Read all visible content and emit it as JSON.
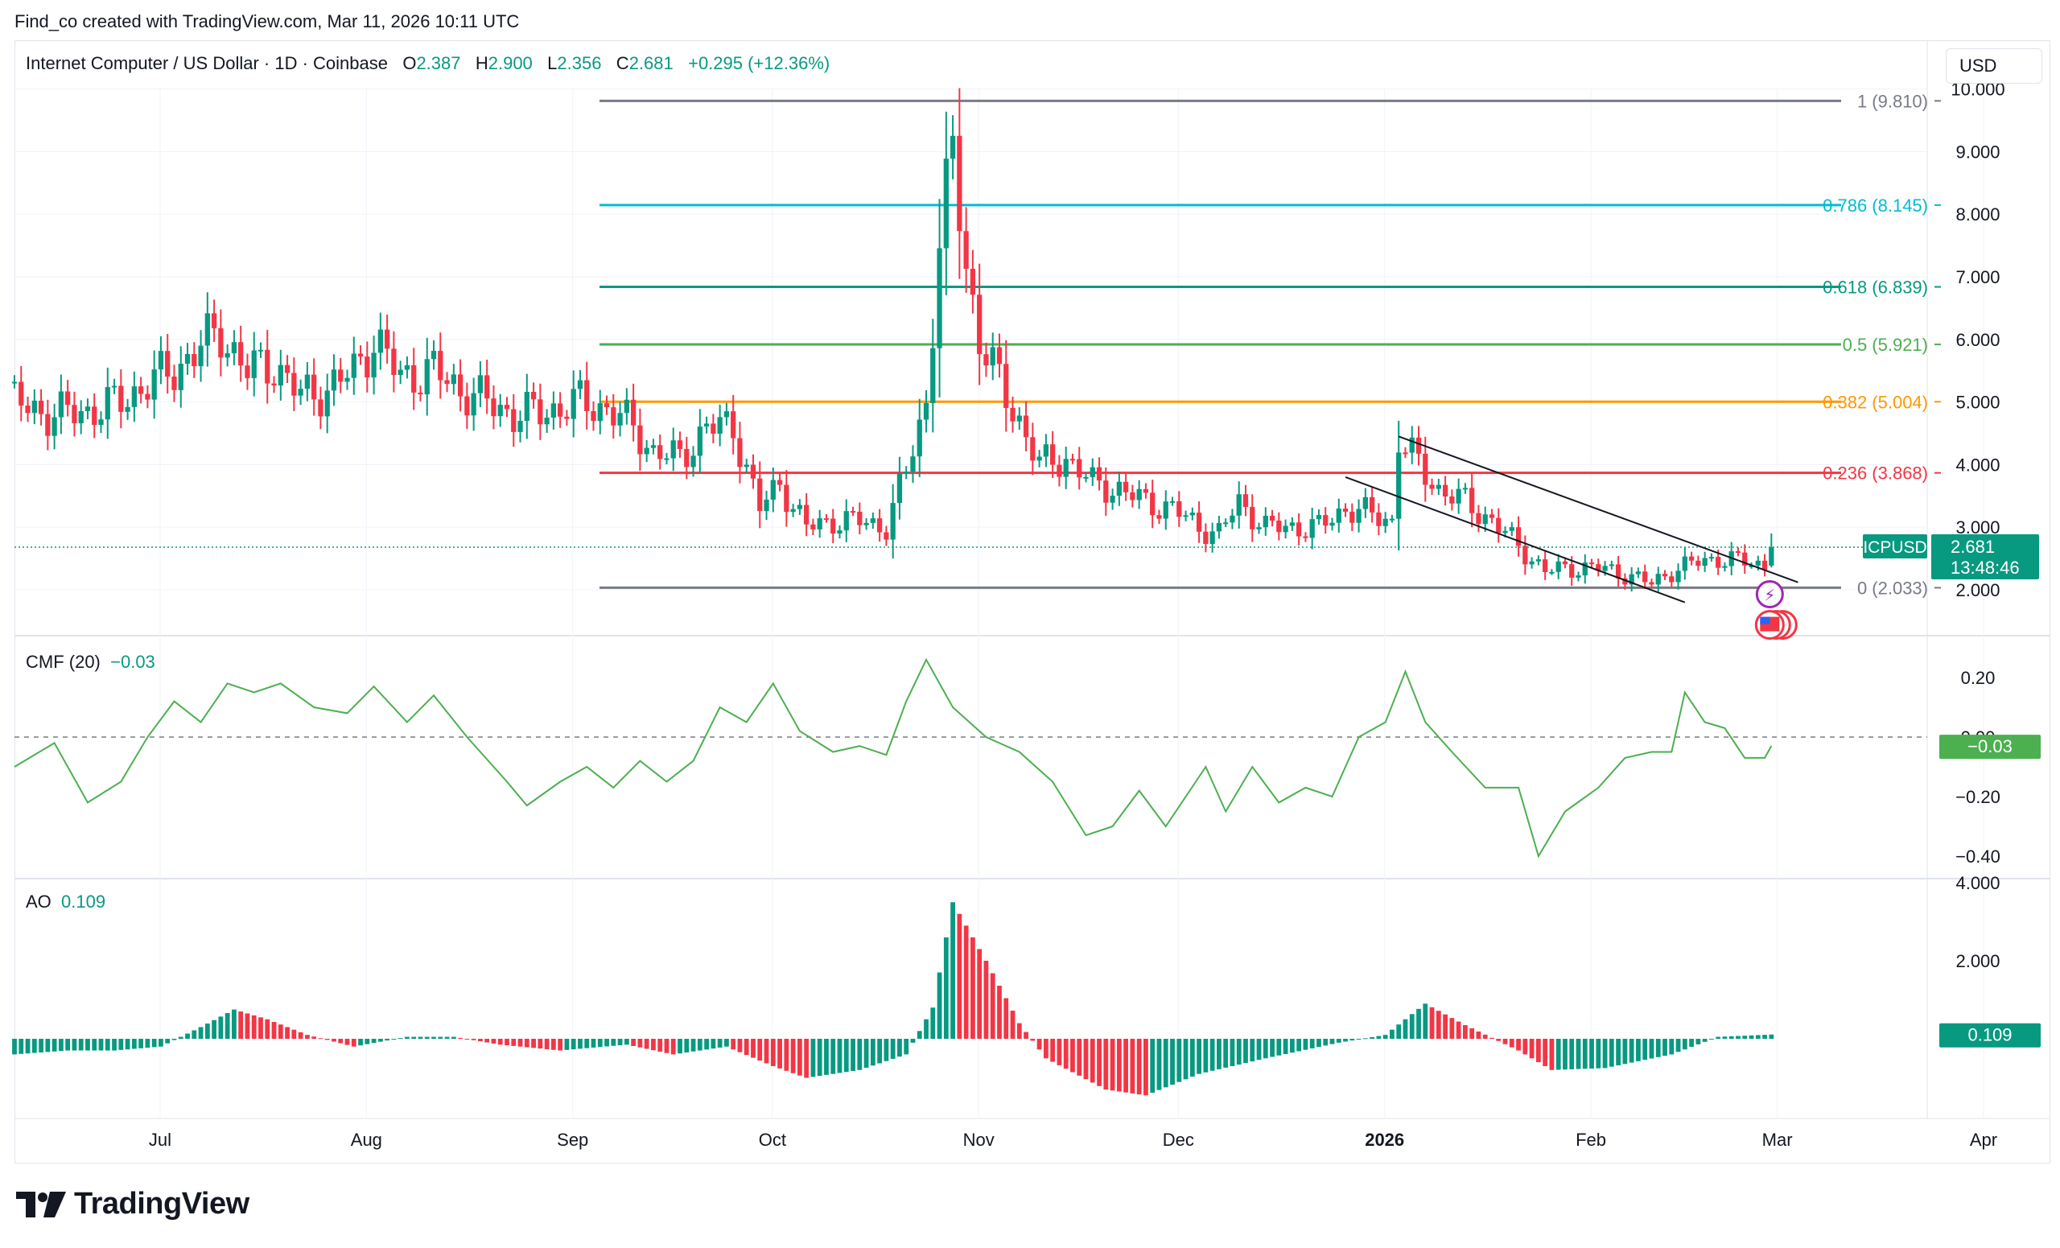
{
  "header": {
    "created_by": "Find_co created with TradingView.com, Mar 11, 2026 10:11 UTC"
  },
  "symbol": {
    "name": "Internet Computer / US Dollar · 1D · Coinbase",
    "open_label": "O",
    "open": "2.387",
    "high_label": "H",
    "high": "2.900",
    "low_label": "L",
    "low": "2.356",
    "close_label": "C",
    "close": "2.681",
    "change": "+0.295 (+12.36%)",
    "ticker": "ICPUSD",
    "last_price": "2.681",
    "countdown": "13:48:46"
  },
  "currency_button": "USD",
  "brand": "TradingView",
  "colors": {
    "up": "#089981",
    "down": "#f23645",
    "cmf": "#4caf50",
    "fib_1": "#787b86",
    "fib_0786": "#00bcd4",
    "fib_0618": "#089981",
    "fib_05": "#4caf50",
    "fib_0382": "#ff9800",
    "fib_0236": "#f23645",
    "fib_0": "#787b86"
  },
  "fib_levels": [
    {
      "ratio_label": "1 (9.810)",
      "price": 9.81,
      "color": "#787b86"
    },
    {
      "ratio_label": "0.786 (8.145)",
      "price": 8.145,
      "color": "#00bcd4"
    },
    {
      "ratio_label": "0.618 (6.839)",
      "price": 6.839,
      "color": "#089981"
    },
    {
      "ratio_label": "0.5 (5.921)",
      "price": 5.921,
      "color": "#4caf50"
    },
    {
      "ratio_label": "0.382 (5.004)",
      "price": 5.004,
      "color": "#ff9800"
    },
    {
      "ratio_label": "0.236 (3.868)",
      "price": 3.868,
      "color": "#f23645"
    },
    {
      "ratio_label": "0 (2.033)",
      "price": 2.033,
      "color": "#787b86"
    }
  ],
  "indicators": {
    "cmf": {
      "label": "CMF (20)",
      "value": "−0.03",
      "axis_value": "−0.03"
    },
    "ao": {
      "label": "AO",
      "value": "0.109",
      "axis_value": "0.109"
    }
  },
  "chart_data": [
    {
      "type": "candlestick",
      "title": "Internet Computer / US Dollar · 1D · Coinbase",
      "x_ticks": [
        "Jul",
        "Aug",
        "Sep",
        "Oct",
        "Nov",
        "Dec",
        "2026",
        "Feb",
        "Mar",
        "Apr"
      ],
      "y_ticks": [
        "2.000",
        "3.000",
        "4.000",
        "5.000",
        "6.000",
        "7.000",
        "8.000",
        "9.000",
        "10.000"
      ],
      "ylim": [
        1.4,
        10.2
      ],
      "close_series": [
        {
          "date": "2025-06-20",
          "close": 5.0
        },
        {
          "date": "2025-06-25",
          "close": 4.8
        },
        {
          "date": "2025-07-01",
          "close": 4.85
        },
        {
          "date": "2025-07-06",
          "close": 5.0
        },
        {
          "date": "2025-07-10",
          "close": 5.3
        },
        {
          "date": "2025-07-14",
          "close": 5.5
        },
        {
          "date": "2025-07-18",
          "close": 5.9
        },
        {
          "date": "2025-07-21",
          "close": 6.1
        },
        {
          "date": "2025-07-25",
          "close": 5.5
        },
        {
          "date": "2025-07-29",
          "close": 5.6
        },
        {
          "date": "2025-08-02",
          "close": 5.1
        },
        {
          "date": "2025-08-06",
          "close": 5.2
        },
        {
          "date": "2025-08-10",
          "close": 5.5
        },
        {
          "date": "2025-08-13",
          "close": 6.0
        },
        {
          "date": "2025-08-17",
          "close": 5.4
        },
        {
          "date": "2025-08-22",
          "close": 5.5
        },
        {
          "date": "2025-08-26",
          "close": 5.2
        },
        {
          "date": "2025-08-30",
          "close": 5.0
        },
        {
          "date": "2025-09-03",
          "close": 4.8
        },
        {
          "date": "2025-09-08",
          "close": 4.85
        },
        {
          "date": "2025-09-13",
          "close": 5.0
        },
        {
          "date": "2025-09-17",
          "close": 4.9
        },
        {
          "date": "2025-09-21",
          "close": 4.6
        },
        {
          "date": "2025-09-24",
          "close": 4.2
        },
        {
          "date": "2025-09-28",
          "close": 4.1
        },
        {
          "date": "2025-10-02",
          "close": 4.6
        },
        {
          "date": "2025-10-06",
          "close": 4.6
        },
        {
          "date": "2025-10-10",
          "close": 3.3
        },
        {
          "date": "2025-10-13",
          "close": 3.7
        },
        {
          "date": "2025-10-17",
          "close": 3.0
        },
        {
          "date": "2025-10-21",
          "close": 3.1
        },
        {
          "date": "2025-10-25",
          "close": 3.1
        },
        {
          "date": "2025-10-29",
          "close": 3.0
        },
        {
          "date": "2025-11-01",
          "close": 3.9
        },
        {
          "date": "2025-11-04",
          "close": 5.0
        },
        {
          "date": "2025-11-06",
          "close": 7.5
        },
        {
          "date": "2025-11-08",
          "close": 9.0
        },
        {
          "date": "2025-11-10",
          "close": 7.2
        },
        {
          "date": "2025-11-12",
          "close": 6.0
        },
        {
          "date": "2025-11-15",
          "close": 5.3
        },
        {
          "date": "2025-11-18",
          "close": 4.7
        },
        {
          "date": "2025-11-21",
          "close": 4.0
        },
        {
          "date": "2025-11-25",
          "close": 4.1
        },
        {
          "date": "2025-11-29",
          "close": 3.7
        },
        {
          "date": "2025-12-03",
          "close": 3.6
        },
        {
          "date": "2025-12-07",
          "close": 3.4
        },
        {
          "date": "2025-12-11",
          "close": 3.3
        },
        {
          "date": "2025-12-15",
          "close": 3.0
        },
        {
          "date": "2025-12-18",
          "close": 2.9
        },
        {
          "date": "2025-12-21",
          "close": 3.4
        },
        {
          "date": "2025-12-25",
          "close": 3.0
        },
        {
          "date": "2025-12-29",
          "close": 3.0
        },
        {
          "date": "2026-01-02",
          "close": 3.0
        },
        {
          "date": "2026-01-06",
          "close": 3.3
        },
        {
          "date": "2026-01-10",
          "close": 3.2
        },
        {
          "date": "2026-01-13",
          "close": 3.1
        },
        {
          "date": "2026-01-14",
          "close": 4.4
        },
        {
          "date": "2026-01-17",
          "close": 4.0
        },
        {
          "date": "2026-01-20",
          "close": 3.6
        },
        {
          "date": "2026-01-24",
          "close": 3.4
        },
        {
          "date": "2026-01-28",
          "close": 3.1
        },
        {
          "date": "2026-02-01",
          "close": 2.7
        },
        {
          "date": "2026-02-05",
          "close": 2.3
        },
        {
          "date": "2026-02-09",
          "close": 2.35
        },
        {
          "date": "2026-02-13",
          "close": 2.35
        },
        {
          "date": "2026-02-17",
          "close": 2.25
        },
        {
          "date": "2026-02-21",
          "close": 2.1
        },
        {
          "date": "2026-02-24",
          "close": 2.3
        },
        {
          "date": "2026-02-28",
          "close": 2.45
        },
        {
          "date": "2026-03-03",
          "close": 2.5
        },
        {
          "date": "2026-03-07",
          "close": 2.45
        },
        {
          "date": "2026-03-10",
          "close": 2.387
        },
        {
          "date": "2026-03-11",
          "close": 2.681
        }
      ],
      "last_bar": {
        "date": "2026-03-11",
        "open": 2.387,
        "high": 2.9,
        "low": 2.356,
        "close": 2.681
      }
    },
    {
      "type": "line",
      "title": "CMF (20)",
      "y_ticks": [
        "0.20",
        "0.00",
        "−0.20",
        "−0.40"
      ],
      "ylim": [
        -0.46,
        0.26
      ],
      "points": [
        {
          "date": "2025-06-20",
          "value": -0.1
        },
        {
          "date": "2025-06-26",
          "value": -0.02
        },
        {
          "date": "2025-07-01",
          "value": -0.22
        },
        {
          "date": "2025-07-06",
          "value": -0.15
        },
        {
          "date": "2025-07-10",
          "value": 0.0
        },
        {
          "date": "2025-07-14",
          "value": 0.12
        },
        {
          "date": "2025-07-18",
          "value": 0.05
        },
        {
          "date": "2025-07-22",
          "value": 0.18
        },
        {
          "date": "2025-07-26",
          "value": 0.15
        },
        {
          "date": "2025-07-30",
          "value": 0.18
        },
        {
          "date": "2025-08-04",
          "value": 0.1
        },
        {
          "date": "2025-08-09",
          "value": 0.08
        },
        {
          "date": "2025-08-13",
          "value": 0.17
        },
        {
          "date": "2025-08-18",
          "value": 0.05
        },
        {
          "date": "2025-08-22",
          "value": 0.14
        },
        {
          "date": "2025-08-27",
          "value": 0.0
        },
        {
          "date": "2025-09-02",
          "value": -0.15
        },
        {
          "date": "2025-09-05",
          "value": -0.23
        },
        {
          "date": "2025-09-10",
          "value": -0.15
        },
        {
          "date": "2025-09-14",
          "value": -0.1
        },
        {
          "date": "2025-09-18",
          "value": -0.17
        },
        {
          "date": "2025-09-22",
          "value": -0.08
        },
        {
          "date": "2025-09-26",
          "value": -0.15
        },
        {
          "date": "2025-09-30",
          "value": -0.08
        },
        {
          "date": "2025-10-04",
          "value": 0.1
        },
        {
          "date": "2025-10-08",
          "value": 0.05
        },
        {
          "date": "2025-10-12",
          "value": 0.18
        },
        {
          "date": "2025-10-16",
          "value": 0.02
        },
        {
          "date": "2025-10-21",
          "value": -0.05
        },
        {
          "date": "2025-10-25",
          "value": -0.03
        },
        {
          "date": "2025-10-29",
          "value": -0.06
        },
        {
          "date": "2025-11-01",
          "value": 0.12
        },
        {
          "date": "2025-11-04",
          "value": 0.26
        },
        {
          "date": "2025-11-08",
          "value": 0.1
        },
        {
          "date": "2025-11-13",
          "value": 0.0
        },
        {
          "date": "2025-11-18",
          "value": -0.05
        },
        {
          "date": "2025-11-23",
          "value": -0.15
        },
        {
          "date": "2025-11-28",
          "value": -0.33
        },
        {
          "date": "2025-12-02",
          "value": -0.3
        },
        {
          "date": "2025-12-06",
          "value": -0.18
        },
        {
          "date": "2025-12-10",
          "value": -0.3
        },
        {
          "date": "2025-12-13",
          "value": -0.2
        },
        {
          "date": "2025-12-16",
          "value": -0.1
        },
        {
          "date": "2025-12-19",
          "value": -0.25
        },
        {
          "date": "2025-12-23",
          "value": -0.1
        },
        {
          "date": "2025-12-27",
          "value": -0.22
        },
        {
          "date": "2025-12-31",
          "value": -0.17
        },
        {
          "date": "2026-01-04",
          "value": -0.2
        },
        {
          "date": "2026-01-08",
          "value": 0.0
        },
        {
          "date": "2026-01-12",
          "value": 0.05
        },
        {
          "date": "2026-01-15",
          "value": 0.22
        },
        {
          "date": "2026-01-18",
          "value": 0.05
        },
        {
          "date": "2026-01-22",
          "value": -0.05
        },
        {
          "date": "2026-01-27",
          "value": -0.17
        },
        {
          "date": "2026-02-01",
          "value": -0.17
        },
        {
          "date": "2026-02-04",
          "value": -0.4
        },
        {
          "date": "2026-02-08",
          "value": -0.25
        },
        {
          "date": "2026-02-13",
          "value": -0.17
        },
        {
          "date": "2026-02-17",
          "value": -0.07
        },
        {
          "date": "2026-02-21",
          "value": -0.05
        },
        {
          "date": "2026-02-24",
          "value": -0.05
        },
        {
          "date": "2026-02-26",
          "value": 0.15
        },
        {
          "date": "2026-03-01",
          "value": 0.05
        },
        {
          "date": "2026-03-04",
          "value": 0.03
        },
        {
          "date": "2026-03-07",
          "value": -0.07
        },
        {
          "date": "2026-03-10",
          "value": -0.07
        },
        {
          "date": "2026-03-11",
          "value": -0.03
        }
      ]
    },
    {
      "type": "bar",
      "title": "AO",
      "y_ticks": [
        "4.000",
        "2.000"
      ],
      "ylim": [
        -2.3,
        4.0
      ],
      "points": [
        {
          "date": "2025-06-20",
          "value": -0.4
        },
        {
          "date": "2025-06-28",
          "value": -0.3
        },
        {
          "date": "2025-07-05",
          "value": -0.3
        },
        {
          "date": "2025-07-12",
          "value": -0.2
        },
        {
          "date": "2025-07-18",
          "value": 0.3
        },
        {
          "date": "2025-07-23",
          "value": 0.75
        },
        {
          "date": "2025-07-28",
          "value": 0.5
        },
        {
          "date": "2025-08-03",
          "value": 0.1
        },
        {
          "date": "2025-08-10",
          "value": -0.2
        },
        {
          "date": "2025-08-18",
          "value": 0.05
        },
        {
          "date": "2025-08-25",
          "value": 0.05
        },
        {
          "date": "2025-09-01",
          "value": -0.15
        },
        {
          "date": "2025-09-10",
          "value": -0.3
        },
        {
          "date": "2025-09-20",
          "value": -0.15
        },
        {
          "date": "2025-09-27",
          "value": -0.4
        },
        {
          "date": "2025-10-05",
          "value": -0.2
        },
        {
          "date": "2025-10-12",
          "value": -0.7
        },
        {
          "date": "2025-10-17",
          "value": -1.0
        },
        {
          "date": "2025-10-25",
          "value": -0.8
        },
        {
          "date": "2025-11-01",
          "value": -0.4
        },
        {
          "date": "2025-11-05",
          "value": 0.8
        },
        {
          "date": "2025-11-08",
          "value": 3.5
        },
        {
          "date": "2025-11-13",
          "value": 2.0
        },
        {
          "date": "2025-11-18",
          "value": 0.4
        },
        {
          "date": "2025-11-22",
          "value": -0.5
        },
        {
          "date": "2025-12-01",
          "value": -1.3
        },
        {
          "date": "2025-12-07",
          "value": -1.45
        },
        {
          "date": "2025-12-15",
          "value": -0.9
        },
        {
          "date": "2025-12-25",
          "value": -0.5
        },
        {
          "date": "2026-01-05",
          "value": -0.1
        },
        {
          "date": "2026-01-12",
          "value": 0.1
        },
        {
          "date": "2026-01-18",
          "value": 0.9
        },
        {
          "date": "2026-01-24",
          "value": 0.35
        },
        {
          "date": "2026-02-01",
          "value": -0.3
        },
        {
          "date": "2026-02-06",
          "value": -0.8
        },
        {
          "date": "2026-02-14",
          "value": -0.75
        },
        {
          "date": "2026-02-24",
          "value": -0.4
        },
        {
          "date": "2026-03-03",
          "value": 0.05
        },
        {
          "date": "2026-03-11",
          "value": 0.109
        }
      ]
    }
  ]
}
